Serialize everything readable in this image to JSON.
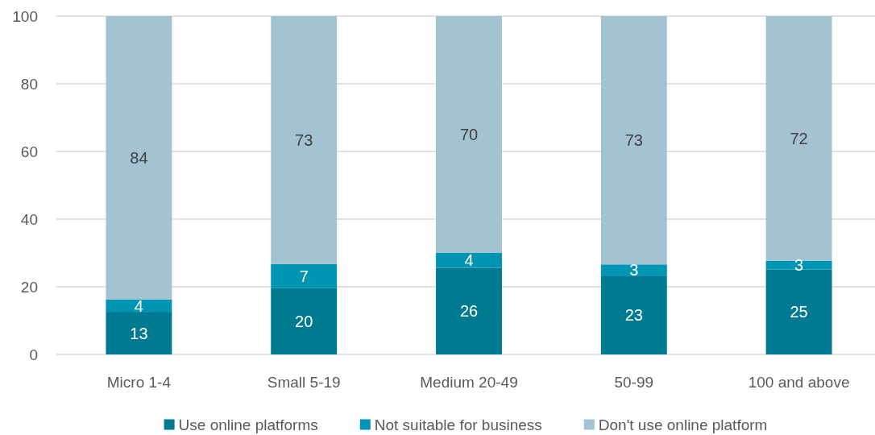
{
  "chart_data": {
    "type": "bar",
    "stacked": true,
    "categories": [
      "Micro 1-4",
      "Small 5-19",
      "Medium 20-49",
      "50-99",
      "100 and above"
    ],
    "series": [
      {
        "name": "Use online platforms",
        "color": "#007a91",
        "values": [
          12.6,
          19.7,
          25.6,
          23.3,
          25.1
        ],
        "value_labels": [
          "13",
          "20",
          "26",
          "23",
          "25"
        ]
      },
      {
        "name": "Not suitable for business",
        "color": "#0095b2",
        "values": [
          3.6,
          7.0,
          4.4,
          3.3,
          2.6
        ],
        "value_labels": [
          "4",
          "7",
          "4",
          "3",
          "3"
        ]
      },
      {
        "name": "Don't use online platform",
        "color": "#a3c3d3",
        "values": [
          83.8,
          73.3,
          70.0,
          73.4,
          72.3
        ],
        "value_labels": [
          "84",
          "73",
          "70",
          "73",
          "72"
        ]
      }
    ],
    "ylim": [
      0,
      100
    ],
    "yticks": [
      0,
      20,
      40,
      60,
      80,
      100
    ],
    "grid": "y",
    "legend": "bottom"
  }
}
